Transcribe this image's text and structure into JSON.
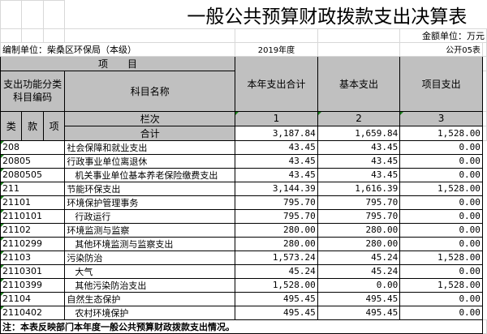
{
  "title": "一般公共预算财政拨款支出决算表",
  "unit": "金额单位：万元",
  "org": "编制单位：柴桑区环保局（本级）",
  "year": "2019年度",
  "form_no": "公开05表",
  "header": {
    "item": "项　　目",
    "code": "支出功能分类科目编码",
    "name": "科目名称",
    "col1": "本年支出合计",
    "col2": "基本支出",
    "col3": "项目支出",
    "lei": "类",
    "kuan": "款",
    "xiang": "项",
    "lanci": "栏次",
    "n1": "1",
    "n2": "2",
    "n3": "3"
  },
  "total": {
    "label": "合计",
    "c1": "3,187.84",
    "c2": "1,659.84",
    "c3": "1,528.00"
  },
  "rows": [
    {
      "code": "208",
      "name": "社会保障和就业支出",
      "c1": "43.45",
      "c2": "43.45",
      "c3": "0.00",
      "indent": false
    },
    {
      "code": "20805",
      "name": "行政事业单位离退休",
      "c1": "43.45",
      "c2": "43.45",
      "c3": "0.00",
      "indent": false
    },
    {
      "code": "2080505",
      "name": "机关事业单位基本养老保险缴费支出",
      "c1": "43.45",
      "c2": "43.45",
      "c3": "0.00",
      "indent": true
    },
    {
      "code": "211",
      "name": "节能环保支出",
      "c1": "3,144.39",
      "c2": "1,616.39",
      "c3": "1,528.00",
      "indent": false
    },
    {
      "code": "21101",
      "name": "环境保护管理事务",
      "c1": "795.70",
      "c2": "795.70",
      "c3": "0.00",
      "indent": false
    },
    {
      "code": "2110101",
      "name": "行政运行",
      "c1": "795.70",
      "c2": "795.70",
      "c3": "0.00",
      "indent": true
    },
    {
      "code": "21102",
      "name": "环境监测与监察",
      "c1": "280.00",
      "c2": "280.00",
      "c3": "0.00",
      "indent": false
    },
    {
      "code": "2110299",
      "name": "其他环境监测与监察支出",
      "c1": "280.00",
      "c2": "280.00",
      "c3": "0.00",
      "indent": true
    },
    {
      "code": "21103",
      "name": "污染防治",
      "c1": "1,573.24",
      "c2": "45.24",
      "c3": "1,528.00",
      "indent": false
    },
    {
      "code": "2110301",
      "name": "大气",
      "c1": "45.24",
      "c2": "45.24",
      "c3": "0.00",
      "indent": true
    },
    {
      "code": "2110399",
      "name": "其他污染防治支出",
      "c1": "1,528.00",
      "c2": "0.00",
      "c3": "1,528.00",
      "indent": true
    },
    {
      "code": "21104",
      "name": "自然生态保护",
      "c1": "495.45",
      "c2": "495.45",
      "c3": "0.00",
      "indent": false
    },
    {
      "code": "2110402",
      "name": "农村环境保护",
      "c1": "495.45",
      "c2": "495.45",
      "c3": "0.00",
      "indent": true
    }
  ],
  "note": "注：本表反映部门本年度一般公共预算财政拨款支出情况。"
}
